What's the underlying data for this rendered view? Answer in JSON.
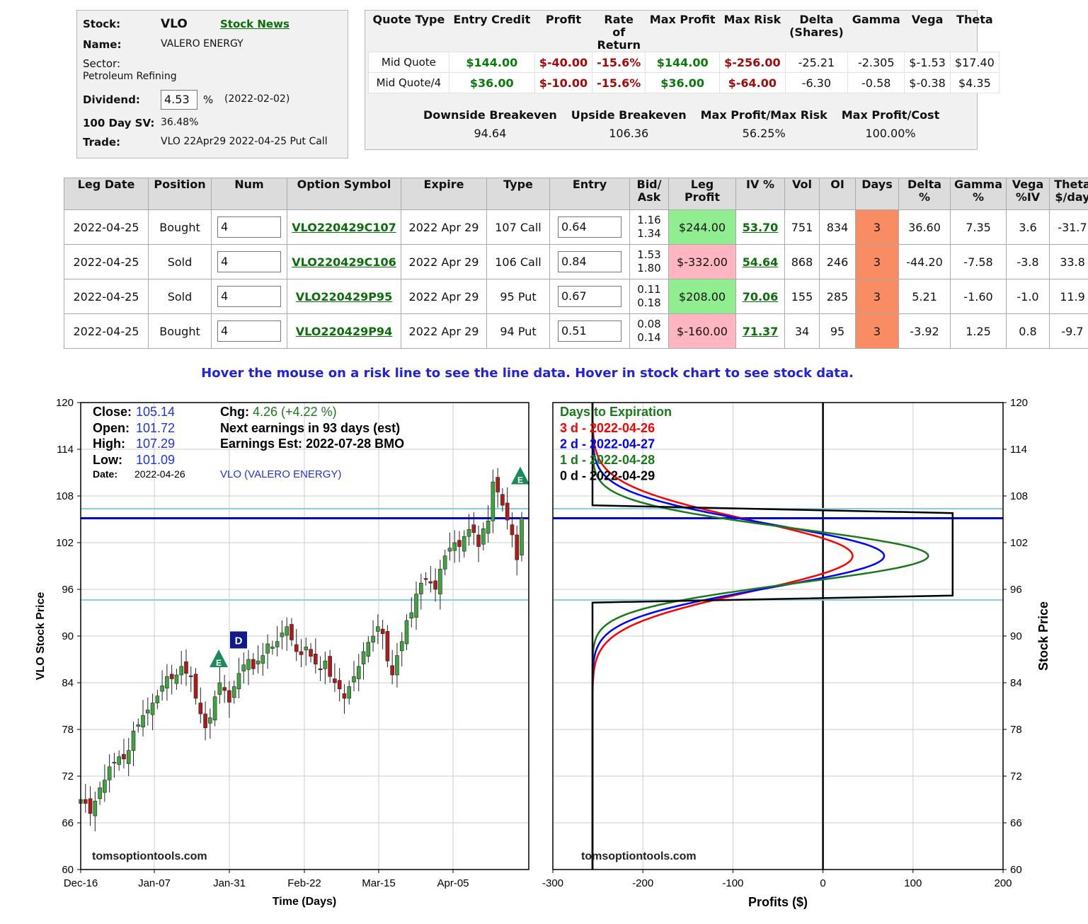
{
  "info": {
    "stock_label": "Stock:",
    "stock": "VLO",
    "news_link": "Stock News",
    "name_label": "Name:",
    "name": "VALERO ENERGY",
    "sector_label": "Sector:",
    "sector": "Petroleum Refining",
    "dividend_label": "Dividend:",
    "dividend": "4.53",
    "dividend_pct": "%",
    "dividend_date": "(2022-02-02)",
    "sv_label": "100 Day SV:",
    "sv": "36.48%",
    "trade_label": "Trade:",
    "trade": "VLO 22Apr29 2022-04-25 Put Call"
  },
  "quote": {
    "headers": [
      "Quote Type",
      "Entry Credit",
      "Profit",
      "Rate of Return",
      "Max Profit",
      "Max Risk",
      "Delta (Shares)",
      "Gamma",
      "Vega",
      "Theta"
    ],
    "rows": [
      [
        "Mid Quote",
        "$144.00",
        "$-40.00",
        "-15.6%",
        "$144.00",
        "$-256.00",
        "-25.21",
        "-2.305",
        "$-1.53",
        "$17.40"
      ],
      [
        "Mid Quote/4",
        "$36.00",
        "$-10.00",
        "-15.6%",
        "$36.00",
        "$-64.00",
        "-6.30",
        "-0.58",
        "$-0.38",
        "$4.35"
      ]
    ],
    "breakeven_headers": [
      "Downside Breakeven",
      "Upside Breakeven",
      "Max Profit/Max Risk",
      "Max Profit/Cost"
    ],
    "breakeven_values": [
      "94.64",
      "106.36",
      "56.25%",
      "100.00%"
    ]
  },
  "legs": {
    "headers": [
      "Leg Date",
      "Position",
      "Num",
      "Option Symbol",
      "Expire",
      "Type",
      "Entry",
      "Bid/ Ask",
      "Leg Profit",
      "IV %",
      "Vol",
      "OI",
      "Days",
      "Delta %",
      "Gamma %",
      "Vega %IV",
      "Theta $/day"
    ],
    "rows": [
      {
        "date": "2022-04-25",
        "position": "Bought",
        "num": "4",
        "symbol": "VLO220429C107",
        "expire": "2022 Apr 29",
        "type": "107 Call",
        "entry": "0.64",
        "bid": "1.16",
        "ask": "1.34",
        "profit": "$244.00",
        "iv": "53.70",
        "vol": "751",
        "oi": "834",
        "days": "3",
        "delta": "36.60",
        "gamma": "7.35",
        "vega": "3.6",
        "theta": "-31.7"
      },
      {
        "date": "2022-04-25",
        "position": "Sold",
        "num": "4",
        "symbol": "VLO220429C106",
        "expire": "2022 Apr 29",
        "type": "106 Call",
        "entry": "0.84",
        "bid": "1.53",
        "ask": "1.80",
        "profit": "$-332.00",
        "iv": "54.64",
        "vol": "868",
        "oi": "246",
        "days": "3",
        "delta": "-44.20",
        "gamma": "-7.58",
        "vega": "-3.8",
        "theta": "33.8"
      },
      {
        "date": "2022-04-25",
        "position": "Sold",
        "num": "4",
        "symbol": "VLO220429P95",
        "expire": "2022 Apr 29",
        "type": "95 Put",
        "entry": "0.67",
        "bid": "0.11",
        "ask": "0.18",
        "profit": "$208.00",
        "iv": "70.06",
        "vol": "155",
        "oi": "285",
        "days": "3",
        "delta": "5.21",
        "gamma": "-1.60",
        "vega": "-1.0",
        "theta": "11.9"
      },
      {
        "date": "2022-04-25",
        "position": "Bought",
        "num": "4",
        "symbol": "VLO220429P94",
        "expire": "2022 Apr 29",
        "type": "94 Put",
        "entry": "0.51",
        "bid": "0.08",
        "ask": "0.14",
        "profit": "$-160.00",
        "iv": "71.37",
        "vol": "34",
        "oi": "95",
        "days": "3",
        "delta": "-3.92",
        "gamma": "1.25",
        "vega": "0.8",
        "theta": "-9.7"
      }
    ]
  },
  "hover_text": "Hover the mouse on a risk line to see the line data. Hover in stock chart to see stock data.",
  "colors": {
    "green_cell": "#90ee90",
    "red_cell": "#ffb6c1",
    "days_cell": "#fa8c64",
    "link_green": "#0a6e0a",
    "hover_blue": "#2222dd"
  },
  "chart_data": [
    {
      "type": "line",
      "title": "VLO Stock Price",
      "ylabel": "VLO Stock Price",
      "xlabel": "Time (Days)",
      "ylim": [
        60,
        120
      ],
      "yticks": [
        60,
        66,
        72,
        78,
        84,
        90,
        96,
        102,
        108,
        114,
        120
      ],
      "xticks": [
        "Dec-16",
        "Jan-07",
        "Jan-31",
        "Feb-22",
        "Mar-15",
        "Apr-05"
      ],
      "watermark": "tomsoptiontools.com",
      "stats": {
        "close_label": "Close:",
        "close": "105.14",
        "open_label": "Open:",
        "open": "101.72",
        "high_label": "High:",
        "high": "107.29",
        "low_label": "Low:",
        "low": "101.09",
        "date_label": "Date:",
        "date": "2022-04-26",
        "chg_label": "Chg:",
        "chg": "4.26  (+4.22 %)",
        "earnings_next": "Next earnings in 93 days  (est)",
        "earnings_est": "Earnings Est: 2022-07-28 BMO",
        "ticker": "VLO (VALERO ENERGY)"
      },
      "markers": [
        {
          "label": "E",
          "x": "Jan-27",
          "y": 87
        },
        {
          "label": "D",
          "x": "Feb-02",
          "y": 89
        },
        {
          "label": "E",
          "x": "Apr-26",
          "y": 110
        }
      ],
      "hlines": [
        {
          "y": 106.36,
          "color": "#87ceeb"
        },
        {
          "y": 105.14,
          "color": "#0000cc"
        },
        {
          "y": 94.64,
          "color": "#87ceeb"
        }
      ],
      "closes": [
        69.0,
        68.5,
        67.2,
        68.8,
        70.5,
        71.5,
        73.2,
        73.8,
        74.5,
        74.2,
        75.3,
        77.8,
        78.6,
        79.8,
        80.5,
        81.4,
        82.3,
        83.6,
        84.8,
        84.5,
        85.0,
        86.1,
        85.2,
        84.8,
        82.0,
        80.0,
        78.2,
        79.5,
        82.2,
        84.0,
        83.0,
        81.5,
        83.5,
        85.2,
        86.3,
        87.0,
        85.8,
        86.8,
        87.5,
        89.0,
        88.6,
        89.3,
        90.4,
        91.2,
        89.5,
        88.0,
        87.6,
        88.6,
        87.4,
        86.4,
        85.8,
        86.8,
        84.8,
        84.0,
        83.2,
        82.0,
        83.5,
        84.8,
        86.1,
        88.0,
        89.2,
        90.0,
        91.2,
        90.3,
        86.8,
        85.0,
        87.5,
        89.3,
        92.0,
        93.0,
        95.4,
        96.8,
        97.3,
        96.8,
        96.0,
        98.6,
        100.3,
        101.3,
        102.0,
        101.5,
        102.8,
        103.7,
        103.3,
        101.5,
        103.8,
        104.8,
        109.8,
        108.5,
        106.8,
        104.9,
        103.0,
        99.8,
        105.14
      ]
    },
    {
      "type": "line",
      "ylabel": "Stock Price",
      "xlabel": "Profits ($)",
      "xlim": [
        -300,
        200
      ],
      "ylim": [
        60,
        120
      ],
      "xticks": [
        -300,
        -200,
        -100,
        0,
        100,
        200
      ],
      "yticks": [
        60,
        66,
        72,
        78,
        84,
        90,
        96,
        102,
        108,
        114,
        120
      ],
      "watermark": "tomsoptiontools.com",
      "legend_title": "Days to Expiration",
      "series": [
        {
          "name": "3 d - 2022-04-26",
          "color": "#ff0000",
          "peak": 33,
          "center": 100.3,
          "sigma": 4.6
        },
        {
          "name": "2 d - 2022-04-27",
          "color": "#0000ff",
          "peak": 68,
          "center": 100.3,
          "sigma": 4.1
        },
        {
          "name": "1 d - 2022-04-28",
          "color": "#1a7a1a",
          "peak": 117,
          "center": 100.3,
          "sigma": 3.5
        },
        {
          "name": "0 d - 2022-04-29",
          "color": "#000000",
          "points": [
            [
              -256,
              60
            ],
            [
              -256,
              94.3
            ],
            [
              144,
              95.2
            ],
            [
              144,
              105.8
            ],
            [
              -256,
              106.8
            ],
            [
              -256,
              120
            ]
          ]
        }
      ],
      "hlines": [
        {
          "y": 106.36,
          "color": "#87ceeb"
        },
        {
          "y": 105.14,
          "color": "#0000cc"
        },
        {
          "y": 94.64,
          "color": "#87ceeb"
        }
      ]
    }
  ]
}
